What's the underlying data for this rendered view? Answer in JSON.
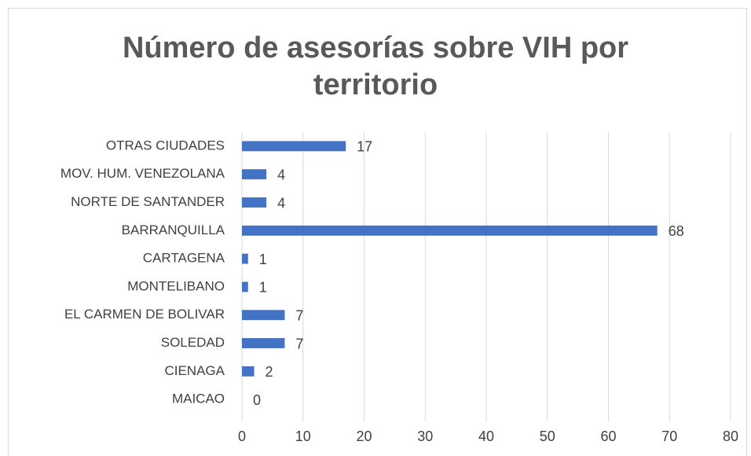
{
  "chart_data": {
    "type": "hbar",
    "title": "Número de asesorías sobre VIH por territorio",
    "categories": [
      "OTRAS CIUDADES",
      "MOV. HUM. VENEZOLANA",
      "NORTE DE SANTANDER",
      "BARRANQUILLA",
      "CARTAGENA",
      "MONTELIBANO",
      "EL CARMEN DE BOLIVAR",
      "SOLEDAD",
      "CIENAGA",
      "MAICAO"
    ],
    "values": [
      17,
      4,
      4,
      68,
      1,
      1,
      7,
      7,
      2,
      0
    ],
    "color": "#4472c4",
    "xlim": [
      0,
      80
    ],
    "xticks": [
      0,
      10,
      20,
      30,
      40,
      50,
      60,
      70,
      80
    ],
    "grid": true
  }
}
